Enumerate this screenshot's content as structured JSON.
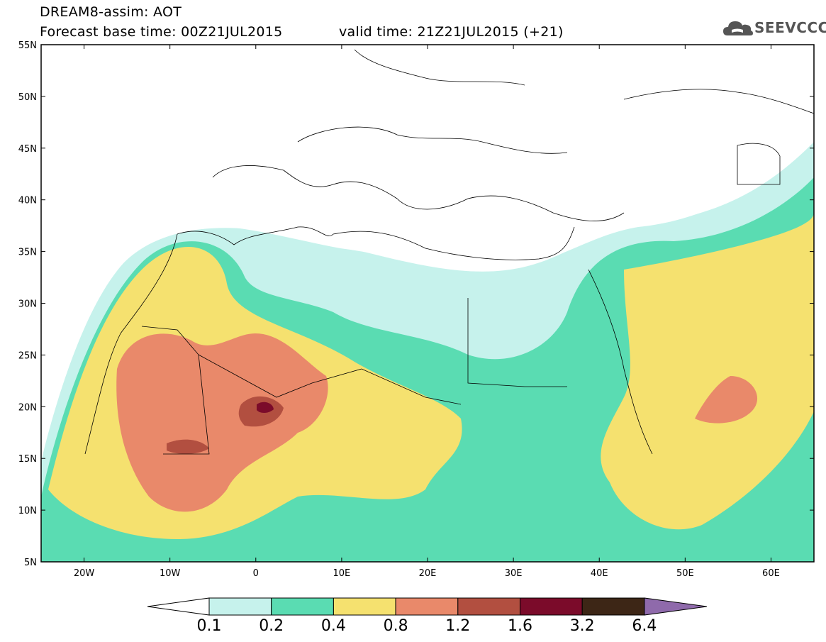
{
  "header": {
    "title": "DREAM8-assim: AOT",
    "base_time": "Forecast base time: 00Z21JUL2015",
    "valid_time": "valid time: 21Z21JUL2015 (+21)",
    "logo_text": "SEEVCCC"
  },
  "map": {
    "lat_labels": [
      "55N",
      "50N",
      "45N",
      "40N",
      "35N",
      "30N",
      "25N",
      "20N",
      "15N",
      "10N",
      "5N"
    ],
    "lon_labels": [
      "20W",
      "10W",
      "0",
      "10E",
      "20E",
      "30E",
      "40E",
      "50E",
      "60E"
    ],
    "lat_range": [
      5,
      55
    ],
    "lon_range": [
      -25,
      65
    ]
  },
  "colorbar": {
    "labels": [
      "0.1",
      "0.2",
      "0.4",
      "0.8",
      "1.2",
      "1.6",
      "3.2",
      "6.4"
    ],
    "colors": [
      "#ffffff",
      "#c6f2ec",
      "#5adcb2",
      "#f5e16f",
      "#e9896a",
      "#b24f40",
      "#7b0b2a",
      "#3d2616",
      "#8f6aab"
    ]
  }
}
